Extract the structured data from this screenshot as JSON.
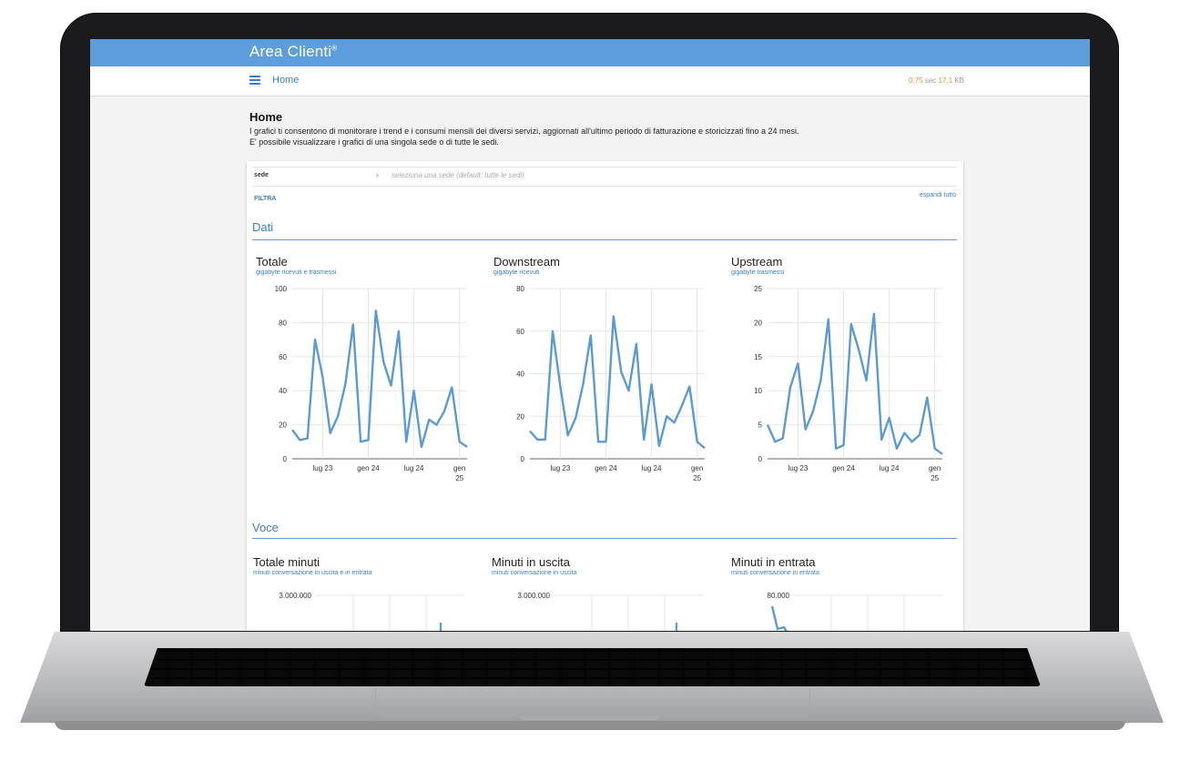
{
  "app": {
    "title": "Area Clienti",
    "title_mark": "®"
  },
  "nav": {
    "home_label": "Home",
    "perf_sec": "0,75",
    "perf_sec_unit": "sec",
    "perf_kb": "17,1",
    "perf_kb_unit": "KB"
  },
  "intro": {
    "title": "Home",
    "line1": "I grafici ti consentono di monitorare i trend e i consumi mensili dei diversi servizi, aggiornati all'ultimo periodo di fatturazione e storicizzati fino a 24 mesi.",
    "line2": "E' possibile visualizzare i grafici di una singola sede o di tutte le sedi."
  },
  "filter": {
    "sede_label": "sede",
    "sede_placeholder": "seleziona una sede (default: tutte le sedi)",
    "filtra": "FILTRA",
    "espandi": "espandi tutto"
  },
  "sections": {
    "dati": "Dati",
    "voce": "Voce"
  },
  "colors": {
    "accent": "#5e9ddb",
    "link": "#3b7fc4",
    "line": "#5b9bd5",
    "perf": "#f08c2e"
  },
  "chart_data": [
    {
      "type": "line",
      "title": "Totale",
      "subtitle": "gigabyte ricevuti e trasmessi",
      "ylim": [
        0,
        100
      ],
      "yticks": [
        "100",
        "80",
        "60",
        "40",
        "20",
        "0"
      ],
      "xticks": [
        {
          "i": 4,
          "label": "lug 23"
        },
        {
          "i": 10,
          "label": "gen 24"
        },
        {
          "i": 16,
          "label": "lug 24"
        },
        {
          "i": 22,
          "label": "gen 25"
        }
      ],
      "values": [
        17,
        11,
        12,
        70,
        48,
        15,
        25,
        44,
        79,
        10,
        11,
        87,
        57,
        43,
        75,
        10,
        40,
        7,
        23,
        20,
        28,
        42,
        10,
        7
      ]
    },
    {
      "type": "line",
      "title": "Downstream",
      "subtitle": "gigabyte ricevuti",
      "ylim": [
        0,
        80
      ],
      "yticks": [
        "80",
        "60",
        "40",
        "20",
        "0"
      ],
      "xticks": [
        {
          "i": 4,
          "label": "lug 23"
        },
        {
          "i": 10,
          "label": "gen 24"
        },
        {
          "i": 16,
          "label": "lug 24"
        },
        {
          "i": 22,
          "label": "gen 25"
        }
      ],
      "values": [
        13,
        9,
        9,
        60,
        34,
        11,
        19,
        35,
        58,
        8,
        8,
        67,
        41,
        32,
        54,
        9,
        35,
        6,
        20,
        17,
        25,
        34,
        8,
        5
      ]
    },
    {
      "type": "line",
      "title": "Upstream",
      "subtitle": "gigabyte trasmessi",
      "ylim": [
        0,
        25
      ],
      "yticks": [
        "25",
        "20",
        "15",
        "10",
        "5",
        "0"
      ],
      "xticks": [
        {
          "i": 4,
          "label": "lug 23"
        },
        {
          "i": 10,
          "label": "gen 24"
        },
        {
          "i": 16,
          "label": "lug 24"
        },
        {
          "i": 22,
          "label": "gen 25"
        }
      ],
      "values": [
        5,
        2.5,
        3,
        10.5,
        14,
        4.3,
        7,
        11.5,
        20.5,
        1.5,
        2,
        19.8,
        16,
        11.5,
        21.3,
        2.8,
        6,
        1.5,
        3.8,
        2.5,
        3.5,
        9,
        1.5,
        0.7
      ]
    },
    {
      "type": "line",
      "title": "Totale minuti",
      "subtitle": "minuti conversazione in uscita e in entrata",
      "yticks": [
        "3.000.000"
      ]
    },
    {
      "type": "line",
      "title": "Minuti in uscita",
      "subtitle": "minuti conversazione in uscita",
      "yticks": [
        "3.000.000"
      ]
    },
    {
      "type": "line",
      "title": "Minuti in entrata",
      "subtitle": "minuti conversazione in entrata",
      "yticks": [
        "80.000"
      ]
    }
  ]
}
